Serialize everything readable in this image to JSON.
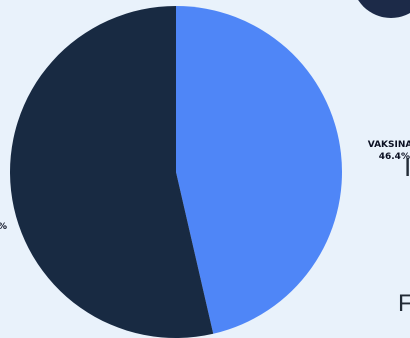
{
  "chart_data": {
    "type": "pie",
    "title": "",
    "slices": [
      {
        "label": "VAKSINASI",
        "value": 46.4,
        "display": "46.4%",
        "color": "#4f86f7"
      },
      {
        "label": "",
        "value": 53.6,
        "display": "%",
        "color": "#182a42"
      }
    ],
    "legend": "none"
  },
  "partial_text": {
    "line_1": "I",
    "line_2": "F"
  },
  "colors": {
    "background": "#e9f2fb",
    "corner_circle": "#1c2a48"
  }
}
